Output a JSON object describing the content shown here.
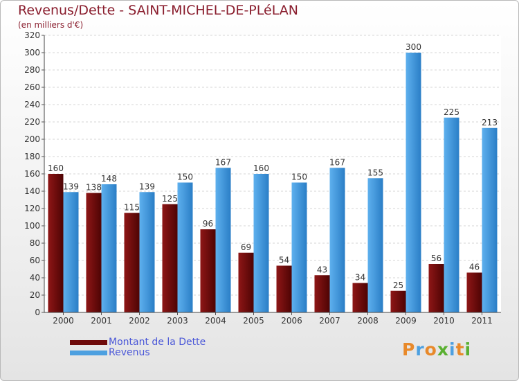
{
  "header": {
    "title": "Revenus/Dette - SAINT-MICHEL-DE-PLéLAN",
    "subtitle": "(en milliers d'€)"
  },
  "chart_data": {
    "type": "bar",
    "title": "Revenus/Dette - SAINT-MICHEL-DE-PLéLAN",
    "subtitle": "(en milliers d'€)",
    "categories": [
      "2000",
      "2001",
      "2002",
      "2003",
      "2004",
      "2005",
      "2006",
      "2007",
      "2008",
      "2009",
      "2010",
      "2011"
    ],
    "series": [
      {
        "name": "Montant de la Dette",
        "color": "#6e0a0a",
        "values": [
          160,
          138,
          115,
          125,
          96,
          69,
          54,
          43,
          34,
          25,
          56,
          46
        ]
      },
      {
        "name": "Revenus",
        "color": "#4da0e0",
        "values": [
          139,
          148,
          139,
          150,
          167,
          160,
          150,
          167,
          155,
          300,
          225,
          213
        ]
      }
    ],
    "ylim": [
      0,
      320
    ],
    "yticks": [
      0,
      20,
      40,
      60,
      80,
      100,
      120,
      140,
      160,
      180,
      200,
      220,
      240,
      260,
      280,
      300,
      320
    ],
    "grid": true,
    "legend_position": "bottom-left"
  },
  "legend": {
    "items": [
      {
        "label": "Montant de la Dette",
        "color": "#6e0a0a"
      },
      {
        "label": "Revenus",
        "color": "#4da0e0"
      }
    ]
  },
  "logo": {
    "text": "Proxiti",
    "letters": [
      {
        "ch": "P",
        "color": "#e8892a"
      },
      {
        "ch": "r",
        "color": "#4da0e0"
      },
      {
        "ch": "o",
        "color": "#e8892a"
      },
      {
        "ch": "x",
        "color": "#5ab031"
      },
      {
        "ch": "i",
        "color": "#4da0e0"
      },
      {
        "ch": "t",
        "color": "#e8892a"
      },
      {
        "ch": "i",
        "color": "#5ab031"
      }
    ]
  }
}
